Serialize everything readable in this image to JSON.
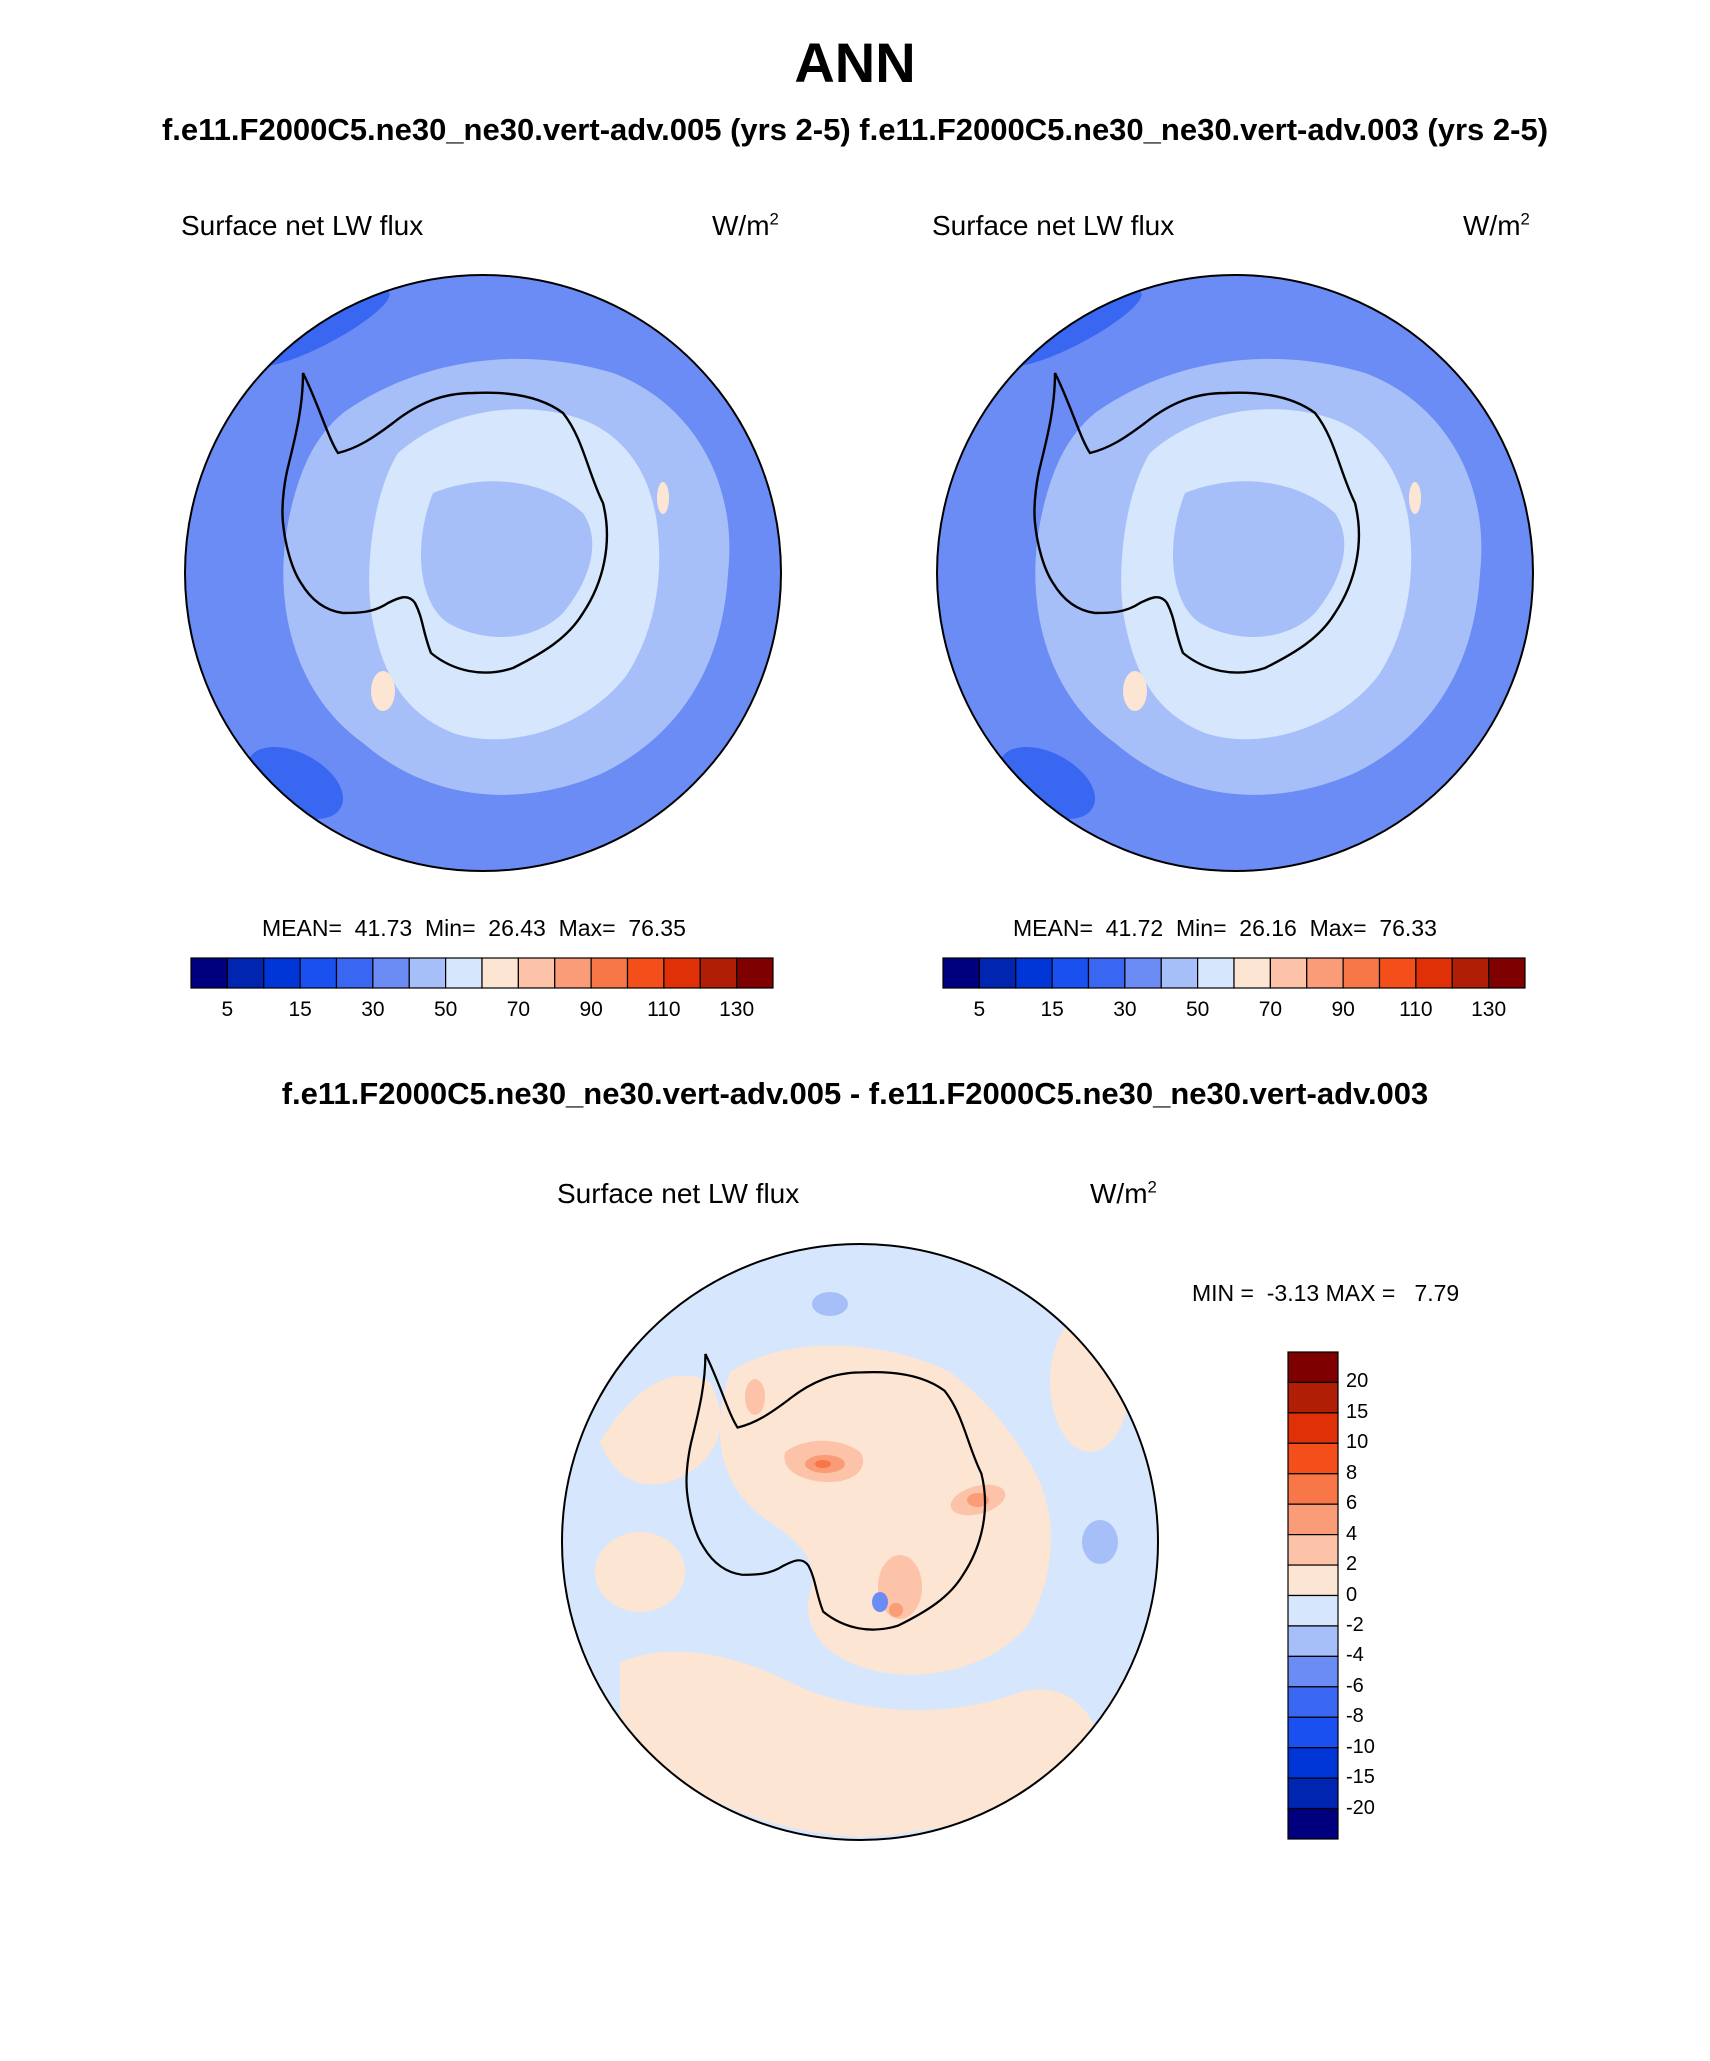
{
  "main_title": "ANN",
  "subtitle_top": "f.e11.F2000C5.ne30_ne30.vert-adv.005 (yrs 2-5)  f.e11.F2000C5.ne30_ne30.vert-adv.003 (yrs 2-5)",
  "subtitle_diff": "f.e11.F2000C5.ne30_ne30.vert-adv.005 - f.e11.F2000C5.ne30_ne30.vert-adv.003",
  "panels": [
    {
      "variable": "Surface net LW flux",
      "units_base": "W/m",
      "units_exp": "2",
      "mean_label": "MEAN=",
      "mean": "41.73",
      "min_label": "Min=",
      "min": "26.43",
      "max_label": "Max=",
      "max": "76.35"
    },
    {
      "variable": "Surface net LW flux",
      "units_base": "W/m",
      "units_exp": "2",
      "mean_label": "MEAN=",
      "mean": "41.72",
      "min_label": "Min=",
      "min": "26.16",
      "max_label": "Max=",
      "max": "76.33"
    }
  ],
  "diff_panel": {
    "variable": "Surface net LW flux",
    "units_base": "W/m",
    "units_exp": "2",
    "min_label": "MIN =",
    "min": "-3.13",
    "max_label": "MAX =",
    "max": "7.79"
  },
  "colorbar_top": {
    "colors": [
      "#00007f",
      "#0025b0",
      "#0035d8",
      "#1a4ff0",
      "#3a67f2",
      "#6a8cf4",
      "#a6bff9",
      "#d6e6fc",
      "#fde5d4",
      "#fcc3a8",
      "#fa9c78",
      "#f77748",
      "#f44e1a",
      "#e03008",
      "#b01e06",
      "#7f0000"
    ],
    "tick_labels": [
      "5",
      "15",
      "30",
      "50",
      "70",
      "90",
      "110",
      "130"
    ]
  },
  "colorbar_diff": {
    "colors_top_to_bottom": [
      "#7f0000",
      "#b01e06",
      "#e03008",
      "#f44e1a",
      "#f77748",
      "#fa9c78",
      "#fcc3a8",
      "#fde5d4",
      "#d6e6fc",
      "#a6bff9",
      "#6a8cf4",
      "#3a67f2",
      "#1a4ff0",
      "#0035d8",
      "#0025b0",
      "#00007f"
    ],
    "tick_labels_top_to_bottom": [
      "20",
      "15",
      "10",
      "8",
      "6",
      "4",
      "2",
      "0",
      "-2",
      "-4",
      "-6",
      "-8",
      "-10",
      "-15",
      "-20"
    ]
  },
  "map_colors": {
    "ocean_outer": "#6a8cf4",
    "ocean_dark": "#3a67f2",
    "ocean_mid": "#a6bff9",
    "land_light": "#d6e6fc",
    "land_interior": "#a6bff9",
    "warm_light": "#fde5d4",
    "warm_mid": "#fcc3a8",
    "warm_strong": "#fa9c78",
    "warm_peak": "#f77748",
    "cool_patch": "#a6bff9",
    "cool_strong": "#6a8cf4",
    "coast": "#000000"
  }
}
